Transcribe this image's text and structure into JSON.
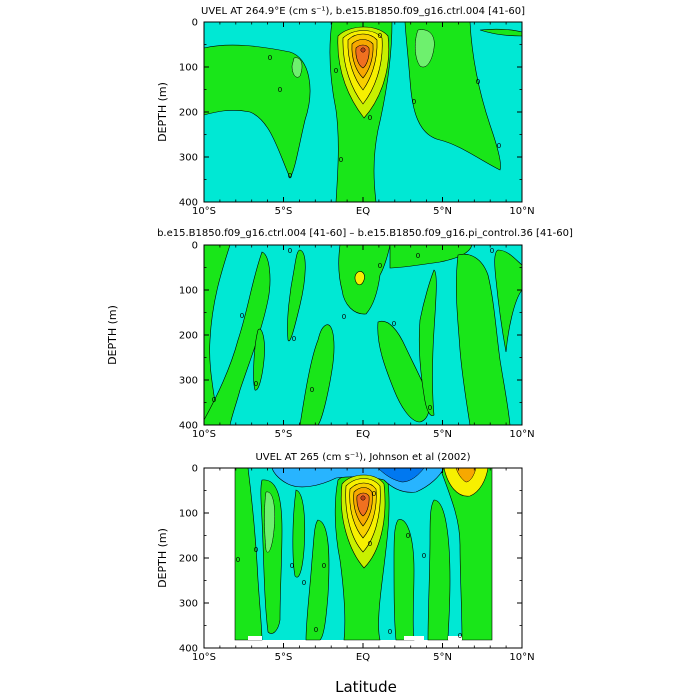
{
  "figure": {
    "xlabel": "Latitude",
    "colors": {
      "background": "#ffffff",
      "cyan": "#00e8d4",
      "cyan_light": "#3ff0e6",
      "green": "#19e619",
      "green_light": "#6ef06e",
      "yellow_green": "#c8f000",
      "yellow": "#f7f000",
      "orange": "#f7a800",
      "red_orange": "#f07020",
      "blue_light": "#28b4ff",
      "blue": "#0078f0"
    }
  },
  "chart_data": [
    {
      "type": "heatmap",
      "title": "UVEL AT 264.9°E (cm s⁻¹), b.e15.B1850.f09_g16.ctrl.004 [41-60]",
      "ylabel": "DEPTH (m)",
      "xlim": [
        -10,
        10
      ],
      "ylim": [
        400,
        0
      ],
      "x_ticks": [
        "10°S",
        "5°S",
        "EQ",
        "5°N",
        "10°N"
      ],
      "x_tick_values": [
        -10,
        -5,
        0,
        5,
        10
      ],
      "y_ticks": [
        "0",
        "100",
        "200",
        "300",
        "400"
      ],
      "y_tick_values": [
        0,
        100,
        200,
        300,
        400
      ],
      "contour_labels": [
        "0",
        "0",
        "0",
        "0",
        "0",
        "0",
        "0",
        "0",
        "0",
        "0"
      ],
      "features": [
        {
          "kind": "core",
          "lat": 0.0,
          "depth": 60,
          "level": "max"
        }
      ]
    },
    {
      "type": "heatmap",
      "title": "b.e15.B1850.f09_g16.ctrl.004 [41-60] – b.e15.B1850.f09_g16.pi_control.36 [41-60]",
      "ylabel": "DEPTH (m)",
      "xlim": [
        -10,
        10
      ],
      "ylim": [
        400,
        0
      ],
      "x_ticks": [
        "10°S",
        "5°S",
        "EQ",
        "5°N",
        "10°N"
      ],
      "x_tick_values": [
        -10,
        -5,
        0,
        5,
        10
      ],
      "y_ticks": [
        "0",
        "100",
        "200",
        "300",
        "400"
      ],
      "y_tick_values": [
        0,
        100,
        200,
        300,
        400
      ],
      "contour_labels": [
        "0",
        "0",
        "0",
        "0",
        "0",
        "0",
        "0",
        "0",
        "0",
        "0",
        "0",
        "0"
      ]
    },
    {
      "type": "heatmap",
      "title": "UVEL AT 265 (cm s⁻¹), Johnson et al (2002)",
      "ylabel": "DEPTH (m)",
      "xlim": [
        -10,
        10
      ],
      "ylim": [
        400,
        0
      ],
      "x_ticks": [
        "10°S",
        "5°S",
        "EQ",
        "5°N",
        "10°N"
      ],
      "x_tick_values": [
        -10,
        -5,
        0,
        5,
        10
      ],
      "y_ticks": [
        "0",
        "100",
        "200",
        "300",
        "400"
      ],
      "y_tick_values": [
        0,
        100,
        200,
        300,
        400
      ],
      "data_lat_range": [
        -8,
        8
      ],
      "contour_labels": [
        "0",
        "0",
        "0",
        "0",
        "0",
        "0",
        "0",
        "0",
        "0",
        "0",
        "0",
        "0"
      ],
      "features": [
        {
          "kind": "core",
          "lat": 0.0,
          "depth": 60,
          "level": "max"
        },
        {
          "kind": "westward",
          "lat": 2.0,
          "depth": 20,
          "level": "min"
        }
      ]
    }
  ]
}
